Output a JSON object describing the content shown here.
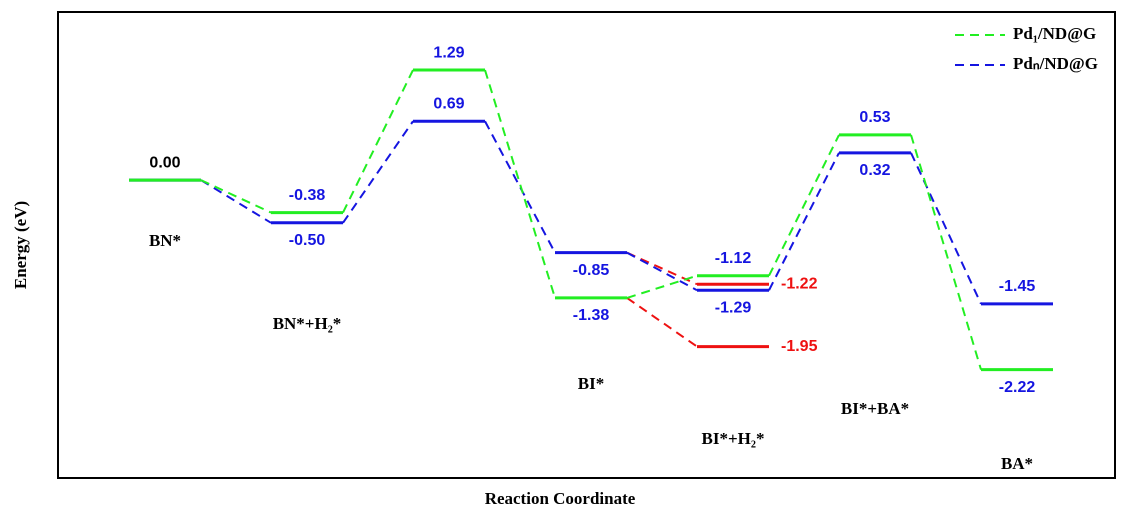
{
  "chart_data": {
    "type": "energy-profile",
    "ylabel": "Energy (eV)",
    "xlabel": "Reaction Coordinate",
    "categories": [
      "BN*",
      "BN*+H₂*",
      null,
      "BI*",
      "BI*+H₂*",
      "BI*+BA*",
      "BA*"
    ],
    "ylim": [
      -3.49,
      1.97
    ],
    "legend": "upper right",
    "series": [
      {
        "name": "Pd₁/ND@G",
        "color": "#22ee22",
        "values": [
          0.0,
          -0.38,
          1.29,
          -1.38,
          -1.12,
          0.53,
          -2.22
        ],
        "value_labels": [
          "0.00",
          "-0.38",
          "1.29",
          "-1.38",
          "-1.12",
          "0.53",
          "-2.22"
        ]
      },
      {
        "name": "Pdₙ/ND@G",
        "color": "#1515e0",
        "values": [
          0.0,
          -0.5,
          0.69,
          -0.85,
          -1.29,
          0.32,
          -1.45
        ],
        "value_labels": [
          null,
          "-0.50",
          "0.69",
          "-0.85",
          "-1.29",
          "0.32",
          "-1.45"
        ]
      },
      {
        "color": "#ee1111",
        "values": [
          null,
          null,
          null,
          -0.85,
          -1.22,
          null,
          null
        ],
        "value_labels": [
          null,
          null,
          null,
          null,
          "-1.22",
          null,
          null
        ]
      },
      {
        "color": "#ee1111",
        "values": [
          null,
          null,
          null,
          -1.38,
          -1.95,
          null,
          null
        ],
        "value_labels": [
          null,
          null,
          null,
          null,
          "-1.95",
          null,
          null
        ]
      }
    ]
  }
}
